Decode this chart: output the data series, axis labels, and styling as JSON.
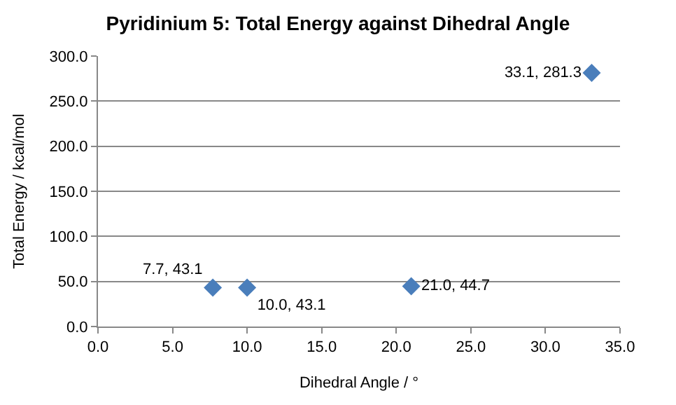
{
  "chart_data": {
    "type": "scatter",
    "title": "Pyridinium 5: Total Energy against Dihedral Angle",
    "xlabel": "Dihedral Angle / °",
    "ylabel": "Total Energy / kcal/mol",
    "x": [
      7.7,
      10.0,
      21.0,
      33.1
    ],
    "series": [
      {
        "color": "#4a7ebb",
        "values": [
          43.1,
          43.1,
          44.7,
          281.3
        ],
        "value_labels": [
          "7.7, 43.1",
          "10.0, 43.1",
          "21.0, 44.7",
          "33.1, 281.3"
        ]
      }
    ],
    "xlim": [
      0,
      35
    ],
    "ylim": [
      0,
      300
    ],
    "xticks": [
      {
        "value": 0,
        "label": "0.0"
      },
      {
        "value": 5,
        "label": "5.0"
      },
      {
        "value": 10,
        "label": "10.0"
      },
      {
        "value": 15,
        "label": "15.0"
      },
      {
        "value": 20,
        "label": "20.0"
      },
      {
        "value": 25,
        "label": "25.0"
      },
      {
        "value": 30,
        "label": "30.0"
      },
      {
        "value": 35,
        "label": "35.0"
      }
    ],
    "yticks": [
      {
        "value": 0,
        "label": "0.0"
      },
      {
        "value": 50,
        "label": "50.0"
      },
      {
        "value": 100,
        "label": "100.0"
      },
      {
        "value": 150,
        "label": "150.0"
      },
      {
        "value": 200,
        "label": "200.0"
      },
      {
        "value": 250,
        "label": "250.0"
      },
      {
        "value": 300,
        "label": "300.0"
      }
    ],
    "grid": "y",
    "legend": false,
    "marker": "diamond"
  }
}
